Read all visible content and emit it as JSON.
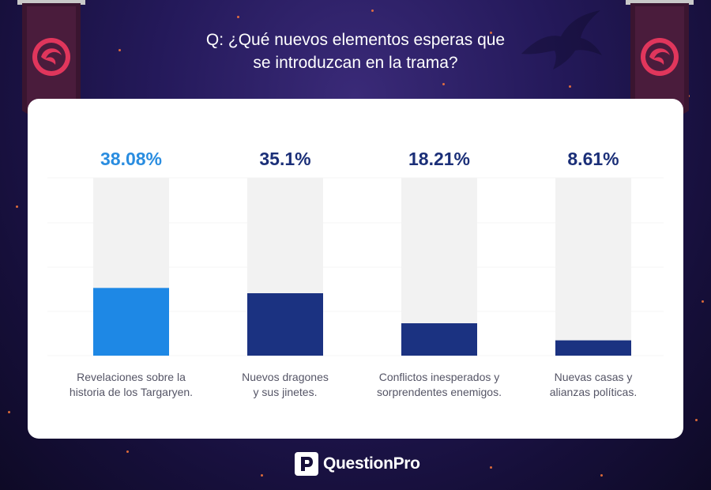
{
  "question": "Q: ¿Qué nuevos elementos esperas que\nse introduzcan en la trama?",
  "brand": {
    "name": "QuestionPro"
  },
  "colors": {
    "highlight_bar": "#1e88e5",
    "highlight_value": "#2a8de0",
    "default_bar": "#1b3281",
    "default_value": "#1b2f78",
    "bar_track": "#f2f2f2",
    "banner": "#3a1530",
    "emblem": "#e0365c"
  },
  "chart_data": {
    "type": "bar",
    "categories": [
      "Revelaciones sobre la\nhistoria de los Targaryen.",
      "Nuevos dragones\ny sus jinetes.",
      "Conflictos inesperados y\nsorprendentes enemigos.",
      "Nuevas casas y\nalianzas políticas."
    ],
    "values": [
      38.08,
      35.1,
      18.21,
      8.61
    ],
    "value_labels": [
      "38.08%",
      "35.1%",
      "18.21%",
      "8.61%"
    ],
    "ylim": [
      0,
      100
    ],
    "highlight_index": 0,
    "grid": true,
    "legend": "none"
  }
}
